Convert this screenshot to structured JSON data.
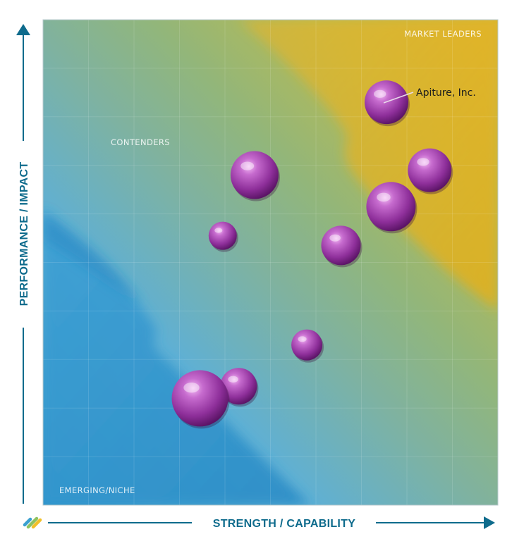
{
  "chart_data": {
    "type": "scatter",
    "xlabel": "STRENGTH / CAPABILITY",
    "ylabel": "PERFORMANCE / IMPACT",
    "xlim": [
      0,
      100
    ],
    "ylim": [
      0,
      100
    ],
    "grid": true,
    "zones": [
      {
        "label": "MARKET LEADERS",
        "placement": "top-right"
      },
      {
        "label": "CONTENDERS",
        "placement": "upper-left"
      },
      {
        "label": "EMERGING/NICHE",
        "placement": "bottom-left"
      }
    ],
    "points": [
      {
        "x": 75.5,
        "y": 83.0,
        "size": 31,
        "label": "Apiture, Inc."
      },
      {
        "x": 85.0,
        "y": 69.0,
        "size": 31,
        "label": ""
      },
      {
        "x": 76.5,
        "y": 61.5,
        "size": 35,
        "label": ""
      },
      {
        "x": 46.5,
        "y": 68.0,
        "size": 34,
        "label": ""
      },
      {
        "x": 65.5,
        "y": 53.5,
        "size": 28,
        "label": ""
      },
      {
        "x": 39.5,
        "y": 55.5,
        "size": 20,
        "label": ""
      },
      {
        "x": 58.0,
        "y": 33.0,
        "size": 22,
        "label": ""
      },
      {
        "x": 43.0,
        "y": 24.5,
        "size": 26,
        "label": ""
      },
      {
        "x": 34.5,
        "y": 22.0,
        "size": 40,
        "label": ""
      }
    ]
  },
  "colors": {
    "blue": "#3aa0d0",
    "green": "#8fb47a",
    "gold": "#e2b62a",
    "bubble": "#9a3ea8",
    "axis": "#0e6b8c"
  },
  "logo": {
    "name": "stripes-logo-icon"
  }
}
